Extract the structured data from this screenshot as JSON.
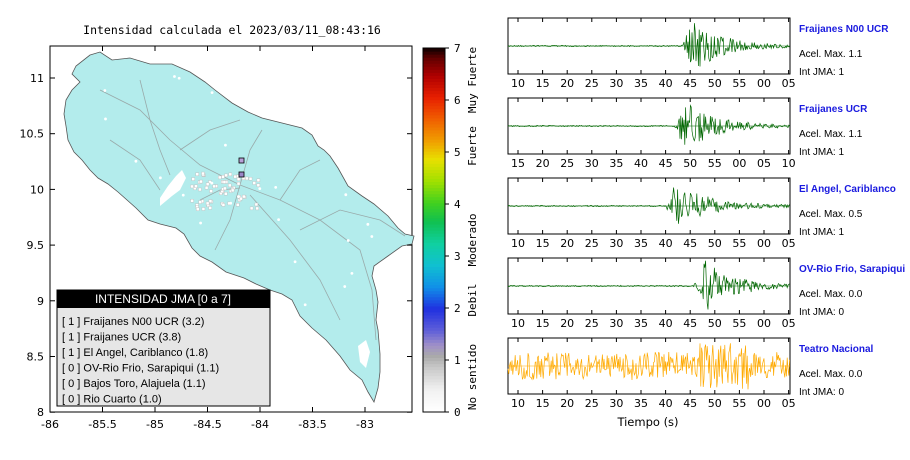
{
  "map": {
    "title": "Intensidad calculada el 2023/03/11_08:43:16",
    "x_ticks": [
      "-86",
      "-85.5",
      "-85",
      "-84.5",
      "-84",
      "-83.5",
      "-83"
    ],
    "y_ticks": [
      "11",
      "10.5",
      "10",
      "9.5",
      "9",
      "8.5",
      "8"
    ],
    "land_color": "#b3ecec",
    "legend": {
      "title": "INTENSIDAD JMA [0 a 7]",
      "items": [
        "[ 1 ]  Fraijanes N00 UCR (3.2)",
        "[ 1 ]  Fraijanes UCR (3.8)",
        "[ 1 ]  El Angel, Cariblanco (1.8)",
        "[ 0 ]  OV-Rio Frio, Sarapiqui (1.1)",
        "[ 0 ]  Bajos Toro, Alajuela (1.1)",
        "[ 0 ]  Rio Cuarto (1.0)"
      ]
    }
  },
  "colorbar": {
    "ticks": [
      "0",
      "1",
      "2",
      "3",
      "4",
      "5",
      "6",
      "7"
    ],
    "labels": [
      "Muy Fuerte",
      "Fuerte",
      "Moderado",
      "Debil",
      "No sentido"
    ]
  },
  "chart_data": {
    "type": "line",
    "description_axis": "Tiempo (s)",
    "xlabel": "Tiempo (s)",
    "panels": [
      {
        "name": "Fraijanes N00 UCR",
        "accel": "Acel. Max. 1.1",
        "int": "Int JMA: 1",
        "color": "#006600",
        "x_ticks": [
          "10",
          "15",
          "20",
          "25",
          "30",
          "35",
          "40",
          "45",
          "50",
          "55",
          "00",
          "05"
        ],
        "onset": 43
      },
      {
        "name": "Fraijanes UCR",
        "accel": "Acel. Max. 1.1",
        "int": "Int JMA: 1",
        "color": "#006600",
        "x_ticks": [
          "15",
          "20",
          "25",
          "30",
          "35",
          "40",
          "45",
          "50",
          "55",
          "00",
          "05",
          "10"
        ],
        "onset": 41
      },
      {
        "name": "El Angel, Cariblanco",
        "accel": "Acel. Max. 0.5",
        "int": "Int JMA: 1",
        "color": "#006600",
        "x_ticks": [
          "10",
          "15",
          "20",
          "25",
          "30",
          "35",
          "40",
          "45",
          "50",
          "55",
          "00",
          "05"
        ],
        "onset": 39
      },
      {
        "name": "OV-Rio Frio, Sarapiqui",
        "accel": "Acel. Max. 0.0",
        "int": "Int JMA: 0",
        "color": "#006600",
        "x_ticks": [
          "10",
          "15",
          "20",
          "25",
          "30",
          "35",
          "40",
          "45",
          "50",
          "55",
          "00",
          "05"
        ],
        "onset": 46
      },
      {
        "name": "Teatro Nacional",
        "accel": "Acel. Max. 0.0",
        "int": "Int JMA: 0",
        "color": "#ffaa00",
        "x_ticks": [
          "10",
          "15",
          "20",
          "25",
          "30",
          "35",
          "40",
          "45",
          "50",
          "55",
          "00",
          "05"
        ],
        "onset": 0
      }
    ]
  }
}
